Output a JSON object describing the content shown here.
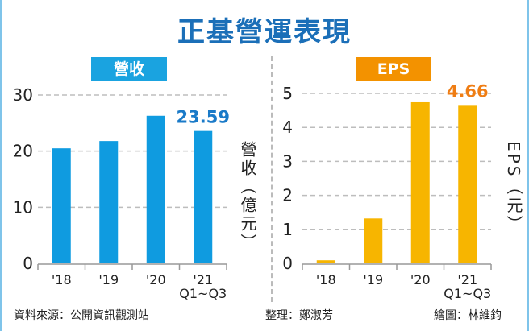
{
  "title": "正基營運表現",
  "chart_data": [
    {
      "type": "bar",
      "title": "營收",
      "ylabel": "營收（億元）",
      "categories": [
        "'18",
        "'19",
        "'20",
        "'21\nQ1~Q3"
      ],
      "values": [
        20.5,
        21.8,
        26.3,
        23.59
      ],
      "data_labels": [
        "",
        "",
        "",
        "23.59"
      ],
      "yticks": [
        0,
        10,
        20,
        30
      ],
      "ylim": [
        0,
        30
      ],
      "grid": true,
      "bar_color": "#0f9be0",
      "label_color": "#1a7ac8"
    },
    {
      "type": "bar",
      "title": "EPS",
      "ylabel": "EPS（元）",
      "categories": [
        "'18",
        "'19",
        "'20",
        "'21\nQ1~Q3"
      ],
      "values": [
        0.09,
        1.32,
        4.74,
        4.66
      ],
      "data_labels": [
        "",
        "",
        "",
        "4.66"
      ],
      "yticks": [
        0,
        1,
        2,
        3,
        4,
        5
      ],
      "ylim": [
        0,
        5
      ],
      "grid": true,
      "bar_color": "#f7b500",
      "label_color": "#ef7d14"
    }
  ],
  "headers": {
    "left_bg": "#1aa3e0",
    "right_bg": "#f39200"
  },
  "footer": {
    "source": "資料來源：公開資訊觀測站",
    "editor": "整理：鄭淑芳",
    "artist": "繪圖：林維鈞"
  }
}
